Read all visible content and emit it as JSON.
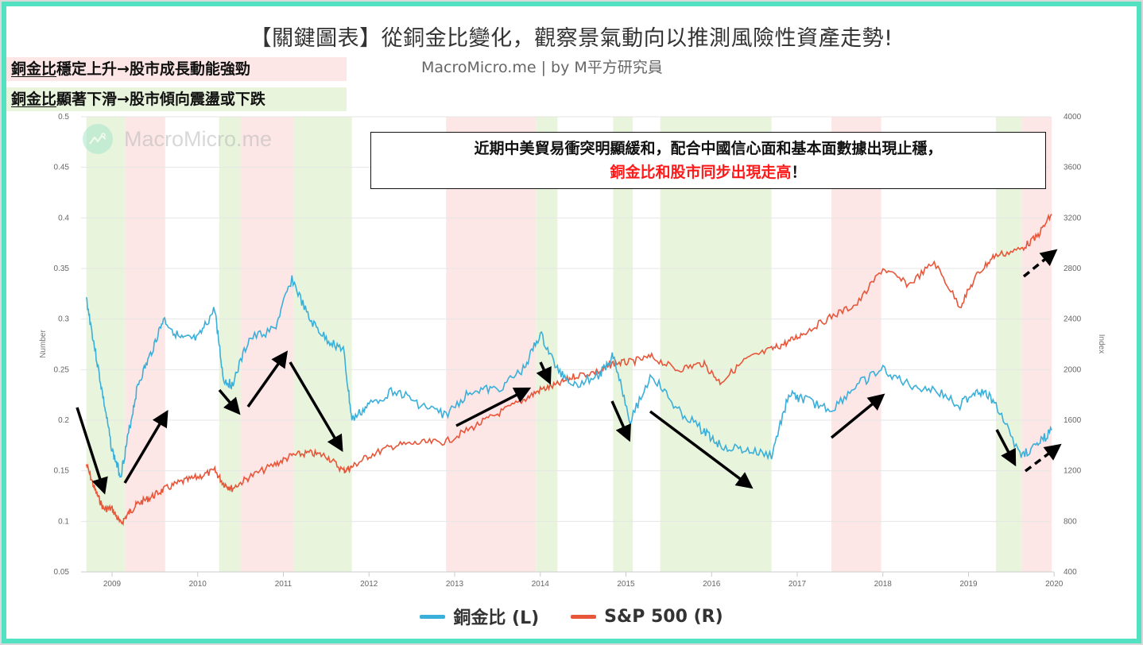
{
  "title": "【關鍵圖表】從銅金比變化，觀察景氣動向以推測風險性資產走勢!",
  "subtitle": "MacroMicro.me | by M平方研究員",
  "watermark": "MacroMicro.me",
  "legend_notes": [
    {
      "underlined": "銅金比",
      "text": "穩定上升→股市成長動能強勁",
      "bg": "#fde6e6"
    },
    {
      "underlined": "銅金比",
      "text": "顯著下滑→股市傾向震盪或下跌",
      "bg": "#e8f5dc"
    }
  ],
  "callout": {
    "line1": "近期中美貿易衝突明顯緩和，配合中國信心面和基本面數據出現止穩，",
    "line2_red": "銅金比和股市同步出現走高",
    "line2_end": "！"
  },
  "legend": [
    {
      "label": "銅金比 (L)",
      "color": "#3aafd9"
    },
    {
      "label": "S&P 500 (R)",
      "color": "#e8563a"
    }
  ],
  "colors": {
    "frame": "#52e2c2",
    "copper_gold": "#3aafd9",
    "sp500": "#e8563a",
    "band_red": "#fde6e6",
    "band_green": "#e8f5dc"
  },
  "chart_data": {
    "type": "line",
    "title": "【關鍵圖表】從銅金比變化，觀察景氣動向以推測風險性資產走勢!",
    "xlabel": "",
    "ylabel_left": "Number",
    "ylabel_right": "Index",
    "x_ticks": [
      "2009",
      "2010",
      "2011",
      "2012",
      "2013",
      "2014",
      "2015",
      "2016",
      "2017",
      "2018",
      "2019",
      "2020"
    ],
    "ylim_left": [
      0.05,
      0.5
    ],
    "y_ticks_left": [
      0.05,
      0.1,
      0.15,
      0.2,
      0.25,
      0.3,
      0.35,
      0.4,
      0.45,
      0.5
    ],
    "ylim_right": [
      400,
      4000
    ],
    "y_ticks_right": [
      400,
      800,
      1200,
      1600,
      2000,
      2400,
      2800,
      3200,
      3600,
      4000
    ],
    "grid": true,
    "legend_position": "bottom",
    "x": [
      2008.7,
      2008.8,
      2008.9,
      2009.0,
      2009.1,
      2009.2,
      2009.3,
      2009.45,
      2009.6,
      2009.8,
      2010.0,
      2010.2,
      2010.3,
      2010.4,
      2010.6,
      2010.9,
      2011.1,
      2011.3,
      2011.5,
      2011.7,
      2011.8,
      2012.0,
      2012.3,
      2012.6,
      2012.9,
      2013.2,
      2013.5,
      2013.8,
      2014.0,
      2014.2,
      2014.4,
      2014.7,
      2014.85,
      2015.05,
      2015.3,
      2015.6,
      2015.9,
      2016.1,
      2016.4,
      2016.7,
      2016.9,
      2017.1,
      2017.4,
      2017.7,
      2018.0,
      2018.3,
      2018.6,
      2018.9,
      2019.1,
      2019.3,
      2019.6,
      2019.8,
      2019.97
    ],
    "series": [
      {
        "name": "銅金比 (L)",
        "axis": "left",
        "values": [
          0.32,
          0.27,
          0.22,
          0.17,
          0.145,
          0.19,
          0.235,
          0.265,
          0.3,
          0.28,
          0.28,
          0.31,
          0.24,
          0.235,
          0.28,
          0.29,
          0.34,
          0.3,
          0.28,
          0.27,
          0.2,
          0.215,
          0.23,
          0.215,
          0.205,
          0.23,
          0.23,
          0.25,
          0.285,
          0.25,
          0.235,
          0.245,
          0.265,
          0.2,
          0.245,
          0.21,
          0.19,
          0.175,
          0.17,
          0.165,
          0.225,
          0.22,
          0.21,
          0.235,
          0.25,
          0.235,
          0.23,
          0.215,
          0.23,
          0.22,
          0.165,
          0.175,
          0.19
        ]
      },
      {
        "name": "S&P 500 (R)",
        "axis": "right",
        "values": [
          1250,
          1050,
          900,
          900,
          780,
          870,
          940,
          990,
          1050,
          1110,
          1150,
          1200,
          1100,
          1060,
          1150,
          1250,
          1320,
          1340,
          1320,
          1200,
          1230,
          1320,
          1400,
          1420,
          1430,
          1540,
          1650,
          1760,
          1840,
          1880,
          1950,
          1990,
          2050,
          2060,
          2100,
          2000,
          2050,
          1900,
          2080,
          2160,
          2220,
          2300,
          2420,
          2520,
          2800,
          2670,
          2850,
          2500,
          2750,
          2900,
          2950,
          3050,
          3230
        ]
      }
    ],
    "shaded_bands": [
      {
        "start": 2008.7,
        "end": 2009.15,
        "color": "green"
      },
      {
        "start": 2009.15,
        "end": 2009.62,
        "color": "red"
      },
      {
        "start": 2010.25,
        "end": 2010.5,
        "color": "green"
      },
      {
        "start": 2010.5,
        "end": 2011.12,
        "color": "red"
      },
      {
        "start": 2011.12,
        "end": 2011.8,
        "color": "green"
      },
      {
        "start": 2012.9,
        "end": 2013.95,
        "color": "red"
      },
      {
        "start": 2013.95,
        "end": 2014.2,
        "color": "green"
      },
      {
        "start": 2014.85,
        "end": 2015.08,
        "color": "green"
      },
      {
        "start": 2015.4,
        "end": 2016.7,
        "color": "green"
      },
      {
        "start": 2017.4,
        "end": 2017.98,
        "color": "red"
      },
      {
        "start": 2019.32,
        "end": 2019.62,
        "color": "green"
      },
      {
        "start": 2019.62,
        "end": 2019.97,
        "color": "red"
      }
    ],
    "annotations": [
      "近期中美貿易衝突明顯緩和，配合中國信心面和基本面數據出現止穩，銅金比和股市同步出現走高！",
      "銅金比穩定上升→股市成長動能強勁",
      "銅金比顯著下滑→股市傾向震盪或下跌"
    ]
  }
}
